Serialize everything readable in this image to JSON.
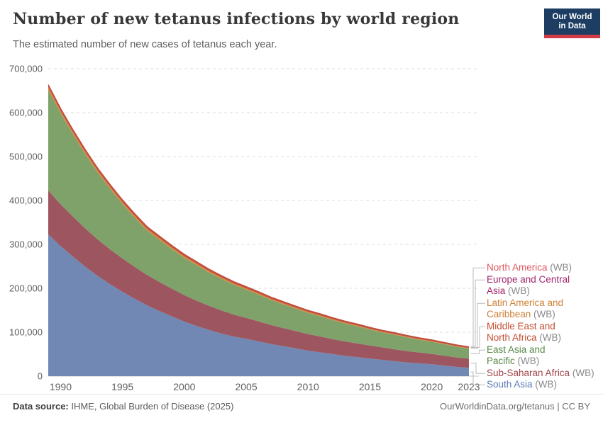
{
  "header": {
    "title": "Number of new tetanus infections by world region",
    "subtitle": "The estimated number of new cases of tetanus each year."
  },
  "logo": {
    "line1": "Our World",
    "line2": "in Data",
    "bg_color": "#1d3d63",
    "accent_color": "#d23a47"
  },
  "footer": {
    "datasource_label": "Data source:",
    "datasource_value": "IHME, Global Burden of Disease (2025)",
    "link": "OurWorldinData.org/tetanus | CC BY"
  },
  "chart_data": {
    "type": "area",
    "stacked": true,
    "title": "Number of new tetanus infections by world region",
    "xlabel": "",
    "ylabel": "",
    "ylim": [
      0,
      700000
    ],
    "grid": "horizontal-dashed",
    "legend_position": "right",
    "top_edge_color": "#c24b3e",
    "gridline_color": "#dcdcdc",
    "zero_line_color": "#c4c4c4",
    "axis_label_color": "#606060",
    "connector_color": "#bbbbbb",
    "legend_suffix_color": "#8a8a8a",
    "x": [
      1989,
      1990,
      1991,
      1992,
      1993,
      1994,
      1995,
      1996,
      1997,
      1998,
      1999,
      2000,
      2001,
      2002,
      2003,
      2004,
      2005,
      2006,
      2007,
      2008,
      2009,
      2010,
      2011,
      2012,
      2013,
      2014,
      2015,
      2016,
      2017,
      2018,
      2019,
      2020,
      2021,
      2022,
      2023
    ],
    "x_ticks": [
      {
        "year": 1990,
        "label": "1990"
      },
      {
        "year": 1995,
        "label": "1995"
      },
      {
        "year": 2000,
        "label": "2000"
      },
      {
        "year": 2005,
        "label": "2005"
      },
      {
        "year": 2010,
        "label": "2010"
      },
      {
        "year": 2015,
        "label": "2015"
      },
      {
        "year": 2020,
        "label": "2020"
      },
      {
        "year": 2023,
        "label": "2023"
      }
    ],
    "y_ticks": [
      {
        "value": 0,
        "label": "0"
      },
      {
        "value": 100000,
        "label": "100,000"
      },
      {
        "value": 200000,
        "label": "200,000"
      },
      {
        "value": 300000,
        "label": "300,000"
      },
      {
        "value": 400000,
        "label": "400,000"
      },
      {
        "value": 500000,
        "label": "500,000"
      },
      {
        "value": 600000,
        "label": "600,000"
      },
      {
        "value": 700000,
        "label": "700,000"
      }
    ],
    "series": [
      {
        "name": "South Asia",
        "suffix": "(WB)",
        "fill": "#7288b4",
        "label_color": "#5b7bb4",
        "values": [
          323000,
          296000,
          272000,
          249000,
          228000,
          209000,
          192000,
          176000,
          161000,
          148000,
          136000,
          124000,
          114000,
          105000,
          97000,
          90000,
          85000,
          79000,
          73000,
          68000,
          63000,
          58000,
          54000,
          50000,
          46000,
          43000,
          40000,
          37000,
          34000,
          31000,
          29000,
          27000,
          24000,
          21000,
          19000
        ]
      },
      {
        "name": "Sub-Saharan Africa",
        "suffix": "(WB)",
        "fill": "#9d5660",
        "label_color": "#a1434a",
        "values": [
          100000,
          95500,
          91200,
          87100,
          83200,
          79500,
          75900,
          72500,
          69200,
          66100,
          63100,
          60300,
          57600,
          55000,
          52500,
          50100,
          47800,
          45600,
          43500,
          41500,
          39600,
          37800,
          36100,
          34400,
          32800,
          31300,
          29900,
          28500,
          27200,
          26000,
          24800,
          23700,
          22600,
          21600,
          20600
        ]
      },
      {
        "name": "East Asia and Pacific",
        "suffix": "(WB)",
        "fill": "#7ea26a",
        "label_color": "#578745",
        "values": [
          229000,
          207000,
          187000,
          169000,
          152000,
          138000,
          124000,
          112000,
          101000,
          96000,
          90000,
          85000,
          81000,
          76000,
          72000,
          68000,
          64000,
          61000,
          57000,
          54000,
          51000,
          48000,
          46000,
          43000,
          41000,
          39000,
          36000,
          34000,
          33000,
          31000,
          29000,
          27500,
          26000,
          24500,
          23000
        ]
      },
      {
        "name": "Latin America and Caribbean",
        "suffix": "(WB)",
        "fill": "#d68a3e",
        "label_color": "#ce8035",
        "values": [
          5500,
          5270,
          5050,
          4840,
          4640,
          4450,
          4260,
          4080,
          3910,
          3750,
          3590,
          3440,
          3300,
          3160,
          3030,
          2900,
          2780,
          2660,
          2550,
          2450,
          2340,
          2250,
          2150,
          2060,
          1980,
          1890,
          1810,
          1740,
          1670,
          1600,
          1530,
          1470,
          1400,
          1350,
          1300
        ]
      },
      {
        "name": "Middle East and North Africa",
        "suffix": "(WB)",
        "fill": "#c0503a",
        "label_color": "#c44e32",
        "values": [
          4500,
          4420,
          4340,
          4260,
          4180,
          4110,
          4030,
          3960,
          3890,
          3820,
          3750,
          3680,
          3610,
          3550,
          3480,
          3420,
          3360,
          3300,
          3240,
          3180,
          3120,
          3060,
          3010,
          2950,
          2900,
          2850,
          2800,
          2750,
          2700,
          2650,
          2600,
          2550,
          2500,
          2450,
          2400
        ]
      },
      {
        "name": "Europe and Central Asia",
        "suffix": "(WB)",
        "fill": "#a1346b",
        "label_color": "#a2246b",
        "values": [
          1500,
          1440,
          1380,
          1320,
          1260,
          1210,
          1160,
          1110,
          1070,
          1020,
          980,
          940,
          900,
          860,
          820,
          790,
          760,
          720,
          690,
          670,
          640,
          610,
          580,
          560,
          540,
          510,
          490,
          470,
          450,
          430,
          420,
          400,
          380,
          370,
          350
        ]
      },
      {
        "name": "North America",
        "suffix": "(WB)",
        "fill": "#da5e62",
        "label_color": "#dd5860",
        "values": [
          300,
          285,
          270,
          256,
          243,
          231,
          219,
          208,
          197,
          187,
          178,
          169,
          160,
          152,
          144,
          137,
          130,
          123,
          117,
          111,
          105,
          100,
          95,
          90,
          85,
          81,
          77,
          73,
          69,
          66,
          62,
          59,
          56,
          53,
          50
        ]
      }
    ],
    "legend": {
      "entries": [
        {
          "series_index": 6,
          "lines": [
            "North America"
          ]
        },
        {
          "series_index": 5,
          "lines": [
            "Europe and Central",
            "Asia"
          ]
        },
        {
          "series_index": 3,
          "lines": [
            "Latin America and",
            "Caribbean"
          ]
        },
        {
          "series_index": 4,
          "lines": [
            "Middle East and",
            "North Africa"
          ]
        },
        {
          "series_index": 2,
          "lines": [
            "East Asia and",
            "Pacific"
          ]
        },
        {
          "series_index": 1,
          "lines": [
            "Sub-Saharan Africa"
          ]
        },
        {
          "series_index": 0,
          "lines": [
            "South Asia"
          ]
        }
      ]
    }
  }
}
